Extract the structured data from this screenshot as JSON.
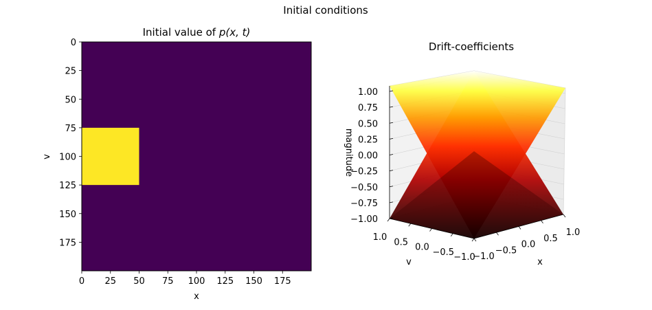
{
  "figure": {
    "suptitle": "Initial conditions"
  },
  "chart_data": [
    {
      "type": "heatmap",
      "title_prefix": "Initial value of ",
      "title_math": "p(x, t)",
      "xlabel": "x",
      "ylabel": "v",
      "xlim": [
        0,
        200
      ],
      "ylim": [
        200,
        0
      ],
      "xticks": [
        "0",
        "25",
        "50",
        "75",
        "100",
        "125",
        "150",
        "175"
      ],
      "yticks": [
        "0",
        "25",
        "50",
        "75",
        "100",
        "125",
        "150",
        "175"
      ],
      "grid": false,
      "colormap": "viridis",
      "background_value": 0,
      "background_color": "#440154",
      "regions": [
        {
          "x_range": [
            0,
            50
          ],
          "v_range": [
            75,
            125
          ],
          "value": 1,
          "color": "#fde725"
        }
      ]
    },
    {
      "type": "surface3d",
      "title": "Drift-coefficients",
      "xlabel": "x",
      "ylabel": "v",
      "zlabel": "magnitude",
      "xticks": [
        "−1.0",
        "−0.5",
        "0.0",
        "0.5",
        "1.0"
      ],
      "yticks": [
        "1.0",
        "0.5",
        "0.0",
        "−0.5",
        "−1.0"
      ],
      "zticks": [
        "1.00",
        "0.75",
        "0.50",
        "0.25",
        "0.00",
        "−0.25",
        "−0.50",
        "−0.75",
        "−1.00"
      ],
      "zlim": [
        -1,
        1
      ],
      "colormap": "hot",
      "surfaces": [
        {
          "expression": "z = x",
          "x_range": [
            -1,
            1
          ],
          "v_range": [
            -1,
            1
          ]
        },
        {
          "expression": "z = -v",
          "x_range": [
            -1,
            1
          ],
          "v_range": [
            -1,
            1
          ]
        }
      ]
    }
  ]
}
